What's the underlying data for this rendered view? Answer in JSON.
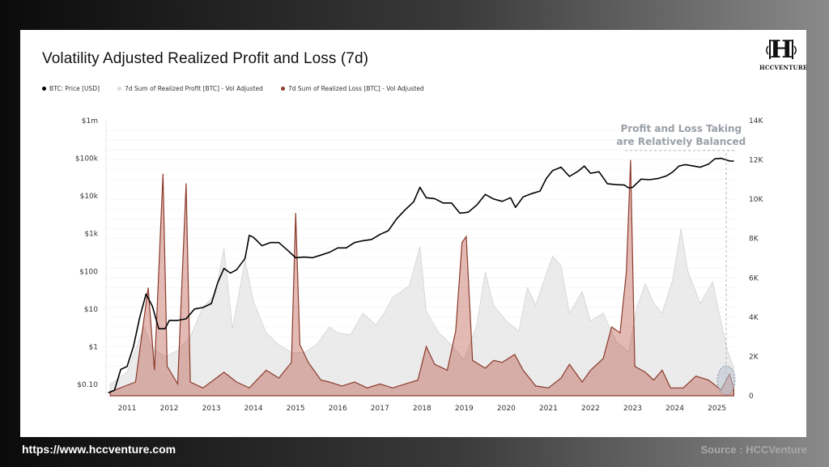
{
  "page": {
    "footer_url": "https://www.hccventure.com",
    "footer_source": "Source : HCCVenture",
    "logo_text": "HCCVENTURE"
  },
  "chart_data": {
    "type": "line",
    "title": "Volatility Adjusted Realized Profit and Loss (7d)",
    "legend": [
      {
        "label": "BTC: Price [USD]",
        "color": "#000000"
      },
      {
        "label": "7d Sum of Realized Profit [BTC] - Vol Adjusted",
        "color": "#d9d9d9"
      },
      {
        "label": "7d Sum of Realized Loss [BTC] - Vol Adjusted",
        "color": "#8b3a2a"
      }
    ],
    "legend_position": "top-left",
    "x_ticks": [
      "2011",
      "2012",
      "2013",
      "2014",
      "2015",
      "2016",
      "2017",
      "2018",
      "2019",
      "2020",
      "2021",
      "2022",
      "2023",
      "2024",
      "2025"
    ],
    "x_range": [
      2010.5,
      2025.45
    ],
    "y_left": {
      "scale": "log",
      "ticks": [
        "$0.10",
        "$1",
        "$10",
        "$100",
        "$1k",
        "$10k",
        "$100k",
        "$1m"
      ],
      "range": [
        0.05,
        1000000
      ]
    },
    "y_right": {
      "scale": "linear",
      "ticks": [
        "0",
        "2K",
        "4K",
        "6K",
        "8K",
        "10K",
        "12K",
        "14K"
      ],
      "range": [
        0,
        14000
      ]
    },
    "annotation": [
      "Profit and Loss Taking",
      "are Relatively Balanced"
    ],
    "series": [
      {
        "name": "BTC: Price [USD]",
        "axis": "left",
        "points": [
          [
            2010.55,
            0.06
          ],
          [
            2010.7,
            0.07
          ],
          [
            2010.85,
            0.25
          ],
          [
            2011.0,
            0.3
          ],
          [
            2011.15,
            1.0
          ],
          [
            2011.3,
            6
          ],
          [
            2011.45,
            25
          ],
          [
            2011.6,
            12
          ],
          [
            2011.75,
            3
          ],
          [
            2011.9,
            3
          ],
          [
            2012.0,
            5
          ],
          [
            2012.2,
            5
          ],
          [
            2012.4,
            5.5
          ],
          [
            2012.6,
            10
          ],
          [
            2012.8,
            11
          ],
          [
            2013.0,
            14
          ],
          [
            2013.15,
            50
          ],
          [
            2013.3,
            120
          ],
          [
            2013.45,
            90
          ],
          [
            2013.6,
            110
          ],
          [
            2013.8,
            220
          ],
          [
            2013.9,
            900
          ],
          [
            2014.0,
            800
          ],
          [
            2014.2,
            480
          ],
          [
            2014.4,
            580
          ],
          [
            2014.6,
            580
          ],
          [
            2014.8,
            370
          ],
          [
            2015.0,
            230
          ],
          [
            2015.2,
            240
          ],
          [
            2015.4,
            230
          ],
          [
            2015.6,
            270
          ],
          [
            2015.8,
            320
          ],
          [
            2016.0,
            420
          ],
          [
            2016.2,
            420
          ],
          [
            2016.4,
            580
          ],
          [
            2016.6,
            650
          ],
          [
            2016.8,
            700
          ],
          [
            2017.0,
            950
          ],
          [
            2017.2,
            1200
          ],
          [
            2017.4,
            2500
          ],
          [
            2017.6,
            4300
          ],
          [
            2017.8,
            7000
          ],
          [
            2017.95,
            17000
          ],
          [
            2018.1,
            9000
          ],
          [
            2018.3,
            8500
          ],
          [
            2018.5,
            6500
          ],
          [
            2018.7,
            6500
          ],
          [
            2018.9,
            3500
          ],
          [
            2019.1,
            3700
          ],
          [
            2019.3,
            5800
          ],
          [
            2019.5,
            11000
          ],
          [
            2019.7,
            8300
          ],
          [
            2019.9,
            7200
          ],
          [
            2020.1,
            9000
          ],
          [
            2020.22,
            5000
          ],
          [
            2020.4,
            9500
          ],
          [
            2020.6,
            11500
          ],
          [
            2020.8,
            13500
          ],
          [
            2020.95,
            29000
          ],
          [
            2021.1,
            47000
          ],
          [
            2021.3,
            58000
          ],
          [
            2021.5,
            33000
          ],
          [
            2021.7,
            45000
          ],
          [
            2021.85,
            62000
          ],
          [
            2022.0,
            40000
          ],
          [
            2022.2,
            44000
          ],
          [
            2022.4,
            21000
          ],
          [
            2022.6,
            20000
          ],
          [
            2022.8,
            19500
          ],
          [
            2022.9,
            16500
          ],
          [
            2023.0,
            17000
          ],
          [
            2023.2,
            28000
          ],
          [
            2023.4,
            27000
          ],
          [
            2023.6,
            29000
          ],
          [
            2023.8,
            34000
          ],
          [
            2023.95,
            43000
          ],
          [
            2024.1,
            62000
          ],
          [
            2024.25,
            68000
          ],
          [
            2024.45,
            62000
          ],
          [
            2024.6,
            58000
          ],
          [
            2024.8,
            70000
          ],
          [
            2024.95,
            97000
          ],
          [
            2025.1,
            100000
          ],
          [
            2025.3,
            85000
          ],
          [
            2025.4,
            84000
          ]
        ]
      },
      {
        "name": "7d Sum of Realized Profit [BTC] - Vol Adjusted",
        "axis": "right",
        "points": [
          [
            2010.6,
            600
          ],
          [
            2011.0,
            1200
          ],
          [
            2011.4,
            3500
          ],
          [
            2011.6,
            2400
          ],
          [
            2011.9,
            2000
          ],
          [
            2012.2,
            2300
          ],
          [
            2012.5,
            3000
          ],
          [
            2012.8,
            4500
          ],
          [
            2013.1,
            5200
          ],
          [
            2013.3,
            7500
          ],
          [
            2013.5,
            3400
          ],
          [
            2013.8,
            6900
          ],
          [
            2014.0,
            4800
          ],
          [
            2014.3,
            3200
          ],
          [
            2014.6,
            2600
          ],
          [
            2014.9,
            2200
          ],
          [
            2015.2,
            2200
          ],
          [
            2015.5,
            2600
          ],
          [
            2015.8,
            3500
          ],
          [
            2016.0,
            3200
          ],
          [
            2016.3,
            3100
          ],
          [
            2016.6,
            4200
          ],
          [
            2016.9,
            3600
          ],
          [
            2017.1,
            4200
          ],
          [
            2017.3,
            5000
          ],
          [
            2017.5,
            5300
          ],
          [
            2017.7,
            5600
          ],
          [
            2017.95,
            7600
          ],
          [
            2018.1,
            4300
          ],
          [
            2018.4,
            3200
          ],
          [
            2018.7,
            2600
          ],
          [
            2019.0,
            1800
          ],
          [
            2019.3,
            3600
          ],
          [
            2019.5,
            6300
          ],
          [
            2019.7,
            4600
          ],
          [
            2020.0,
            3800
          ],
          [
            2020.3,
            3300
          ],
          [
            2020.5,
            5500
          ],
          [
            2020.7,
            4600
          ],
          [
            2020.95,
            6200
          ],
          [
            2021.1,
            7100
          ],
          [
            2021.3,
            6600
          ],
          [
            2021.5,
            4200
          ],
          [
            2021.8,
            5300
          ],
          [
            2022.0,
            3800
          ],
          [
            2022.3,
            4200
          ],
          [
            2022.6,
            2800
          ],
          [
            2022.9,
            2200
          ],
          [
            2023.1,
            4500
          ],
          [
            2023.3,
            5700
          ],
          [
            2023.5,
            4700
          ],
          [
            2023.7,
            4200
          ],
          [
            2023.95,
            5900
          ],
          [
            2024.15,
            8500
          ],
          [
            2024.3,
            6400
          ],
          [
            2024.6,
            4700
          ],
          [
            2024.9,
            5800
          ],
          [
            2025.05,
            4200
          ],
          [
            2025.25,
            2300
          ],
          [
            2025.4,
            1400
          ]
        ]
      },
      {
        "name": "7d Sum of Realized Loss [BTC] - Vol Adjusted",
        "axis": "right",
        "points": [
          [
            2010.6,
            200
          ],
          [
            2011.2,
            700
          ],
          [
            2011.5,
            5500
          ],
          [
            2011.65,
            1300
          ],
          [
            2011.85,
            11300
          ],
          [
            2011.95,
            1500
          ],
          [
            2012.2,
            600
          ],
          [
            2012.4,
            10800
          ],
          [
            2012.5,
            700
          ],
          [
            2012.8,
            400
          ],
          [
            2013.3,
            1200
          ],
          [
            2013.6,
            700
          ],
          [
            2013.9,
            400
          ],
          [
            2014.3,
            1300
          ],
          [
            2014.6,
            900
          ],
          [
            2014.9,
            1700
          ],
          [
            2015.0,
            9300
          ],
          [
            2015.1,
            2600
          ],
          [
            2015.3,
            1700
          ],
          [
            2015.6,
            800
          ],
          [
            2015.8,
            700
          ],
          [
            2016.1,
            500
          ],
          [
            2016.4,
            700
          ],
          [
            2016.7,
            400
          ],
          [
            2017.0,
            600
          ],
          [
            2017.3,
            400
          ],
          [
            2017.6,
            600
          ],
          [
            2017.9,
            800
          ],
          [
            2018.1,
            2500
          ],
          [
            2018.3,
            1600
          ],
          [
            2018.6,
            1300
          ],
          [
            2018.8,
            3300
          ],
          [
            2018.95,
            7800
          ],
          [
            2019.05,
            8100
          ],
          [
            2019.2,
            1800
          ],
          [
            2019.5,
            1400
          ],
          [
            2019.7,
            1800
          ],
          [
            2019.9,
            1700
          ],
          [
            2020.2,
            2100
          ],
          [
            2020.4,
            1300
          ],
          [
            2020.7,
            500
          ],
          [
            2021.0,
            400
          ],
          [
            2021.3,
            900
          ],
          [
            2021.5,
            1600
          ],
          [
            2021.8,
            700
          ],
          [
            2022.0,
            1300
          ],
          [
            2022.3,
            1900
          ],
          [
            2022.5,
            3500
          ],
          [
            2022.7,
            3200
          ],
          [
            2022.85,
            6300
          ],
          [
            2022.95,
            12000
          ],
          [
            2023.05,
            1500
          ],
          [
            2023.3,
            1200
          ],
          [
            2023.5,
            800
          ],
          [
            2023.7,
            1300
          ],
          [
            2023.9,
            400
          ],
          [
            2024.2,
            400
          ],
          [
            2024.5,
            1000
          ],
          [
            2024.8,
            800
          ],
          [
            2025.1,
            300
          ],
          [
            2025.3,
            1100
          ],
          [
            2025.4,
            400
          ]
        ]
      }
    ]
  }
}
